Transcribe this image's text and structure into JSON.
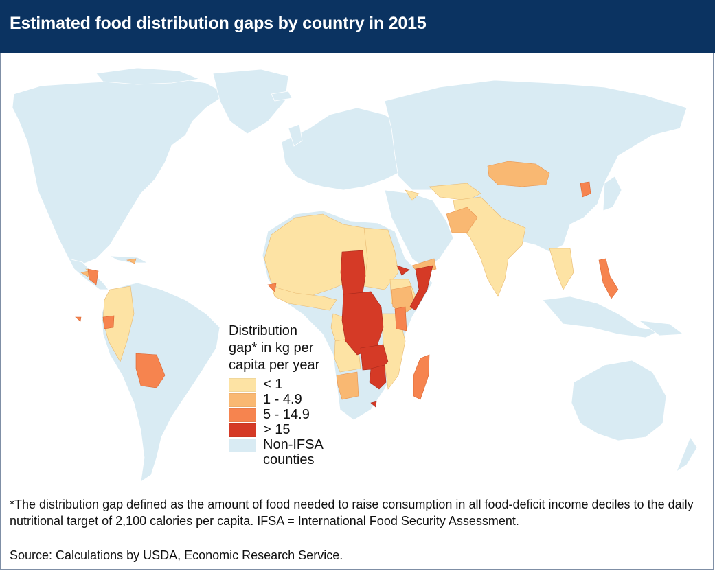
{
  "title": "Estimated food distribution gaps by country in 2015",
  "legend": {
    "title_lines": [
      "Distribution",
      "gap* in kg per",
      "capita per year"
    ],
    "items": [
      {
        "label": "< 1",
        "color": "#fde3a4"
      },
      {
        "label": "1 - 4.9",
        "color": "#f9b872"
      },
      {
        "label": "5 - 14.9",
        "color": "#f6844f"
      },
      {
        "label": "> 15",
        "color": "#d53a26"
      },
      {
        "label": "Non-IFSA\ncounties",
        "label_line1": "Non-IFSA",
        "label_line2": "counties",
        "color": "#d9ebf3"
      }
    ]
  },
  "colors": {
    "ocean": "#ffffff",
    "title_bg": "#0b3361",
    "border": "#ffffff"
  },
  "footnote": "*The distribution gap defined as the amount of food needed to raise consumption in all food-deficit income deciles to the daily nutritional target of 2,100 calories per capita.  IFSA = International Food Security Assessment.",
  "source": "Source:  Calculations by USDA, Economic Research Service."
}
